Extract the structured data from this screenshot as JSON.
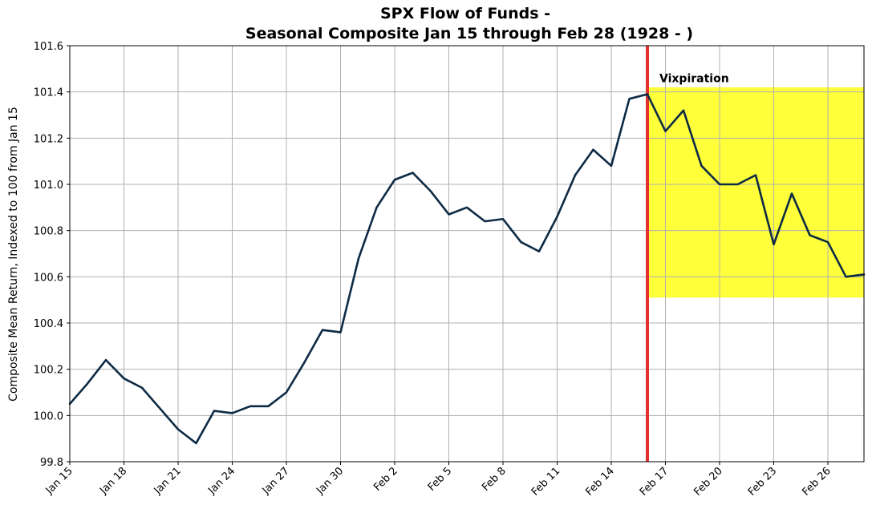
{
  "chart_data": {
    "type": "line",
    "title": [
      "SPX Flow of Funds -",
      "Seasonal Composite Jan 15 through Feb 28 (1928 - )"
    ],
    "xlabel": "",
    "ylabel": "Composite Mean Return, Indexed to 100 from Jan 15",
    "ylim": [
      99.8,
      101.6
    ],
    "yticks": [
      "99.8",
      "100.0",
      "100.2",
      "100.4",
      "100.6",
      "100.8",
      "101.0",
      "101.2",
      "101.4",
      "101.6"
    ],
    "xticks": [
      {
        "label": "Jan 15",
        "day": 0
      },
      {
        "label": "Jan 18",
        "day": 3
      },
      {
        "label": "Jan 21",
        "day": 6
      },
      {
        "label": "Jan 24",
        "day": 9
      },
      {
        "label": "Jan 27",
        "day": 12
      },
      {
        "label": "Jan 30",
        "day": 15
      },
      {
        "label": "Feb 2",
        "day": 18
      },
      {
        "label": "Feb 5",
        "day": 21
      },
      {
        "label": "Feb 8",
        "day": 24
      },
      {
        "label": "Feb 11",
        "day": 27
      },
      {
        "label": "Feb 14",
        "day": 30
      },
      {
        "label": "Feb 17",
        "day": 33
      },
      {
        "label": "Feb 20",
        "day": 36
      },
      {
        "label": "Feb 23",
        "day": 39
      },
      {
        "label": "Feb 26",
        "day": 42
      }
    ],
    "xlim": [
      0,
      44
    ],
    "grid": true,
    "series": [
      {
        "color": "#0d2a45",
        "x": [
          0,
          1,
          2,
          3,
          4,
          5,
          6,
          7,
          8,
          9,
          10,
          11,
          12,
          13,
          14,
          15,
          16,
          17,
          18,
          19,
          20,
          21,
          22,
          23,
          24,
          25,
          26,
          27,
          28,
          29,
          30,
          31,
          32,
          33,
          34,
          35,
          36,
          37,
          38,
          39,
          40,
          41,
          42,
          43,
          44
        ],
        "y": [
          100.05,
          100.14,
          100.24,
          100.16,
          100.12,
          100.03,
          99.94,
          99.88,
          100.02,
          100.01,
          100.04,
          100.04,
          100.1,
          100.23,
          100.37,
          100.36,
          100.68,
          100.9,
          101.02,
          101.05,
          100.97,
          100.87,
          100.9,
          100.84,
          100.85,
          100.75,
          100.71,
          100.86,
          101.04,
          101.15,
          101.08,
          101.37,
          101.39,
          101.23,
          101.32,
          101.08,
          101.0,
          101.0,
          101.04,
          100.74,
          100.96,
          100.78,
          100.75,
          100.6,
          100.61
        ]
      }
    ],
    "vline": {
      "day": 32,
      "color": "#e53030"
    },
    "highlight": {
      "x_start": 32,
      "x_end": 44,
      "y_low": 100.51,
      "y_high": 101.42,
      "color": "#ffff3a"
    },
    "annotations": [
      {
        "text": "Vixpiration",
        "day": 32.4,
        "y": 101.46
      }
    ]
  }
}
